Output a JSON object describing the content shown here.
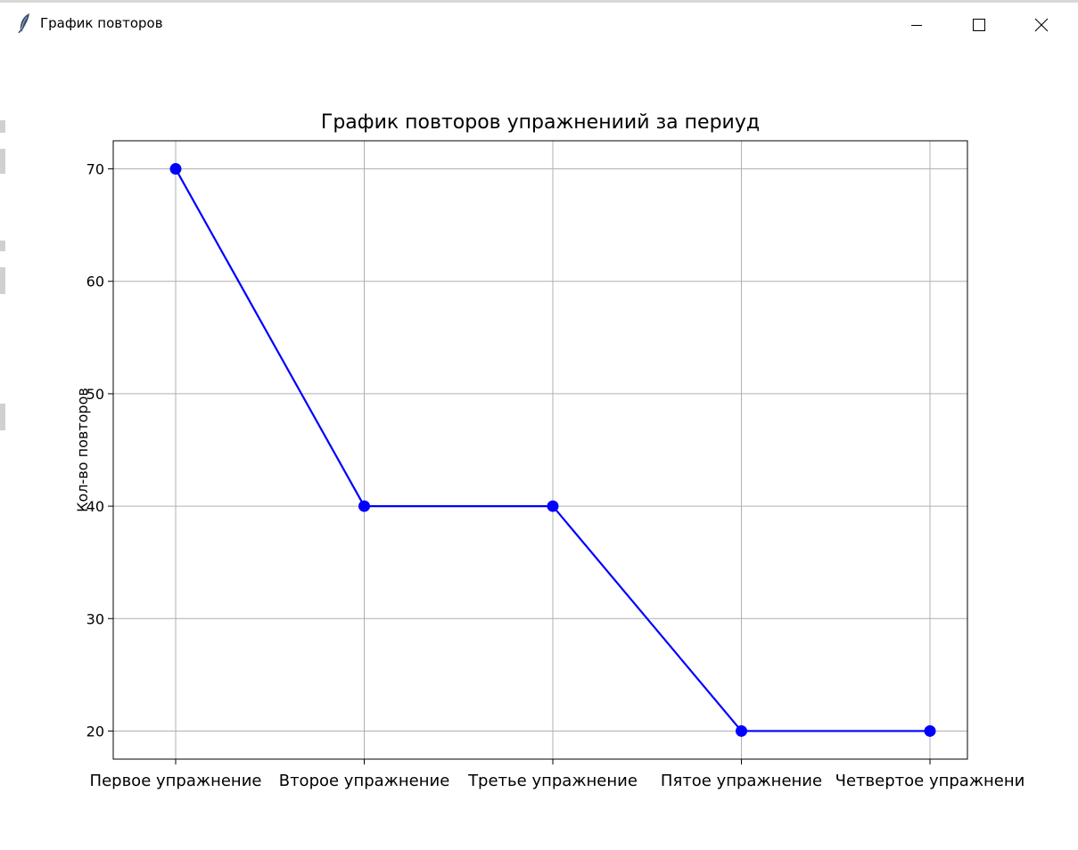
{
  "window": {
    "title": "График повторов"
  },
  "chart_data": {
    "type": "line",
    "title": "График повторов упражнениий за периуд",
    "xlabel": "",
    "ylabel": "Кол-во повторов",
    "categories": [
      "Первое упражнение",
      "Второе упражнение",
      "Третье упражнение",
      "Пятое упражнение",
      "Четвертое упражнени"
    ],
    "series": [
      {
        "values": [
          70,
          40,
          40,
          20,
          20
        ],
        "color": "#0000ff",
        "marker": "circle"
      }
    ],
    "y_ticks": [
      20,
      30,
      40,
      50,
      60,
      70
    ],
    "ylim": [
      17.5,
      72.5
    ],
    "grid": true
  }
}
